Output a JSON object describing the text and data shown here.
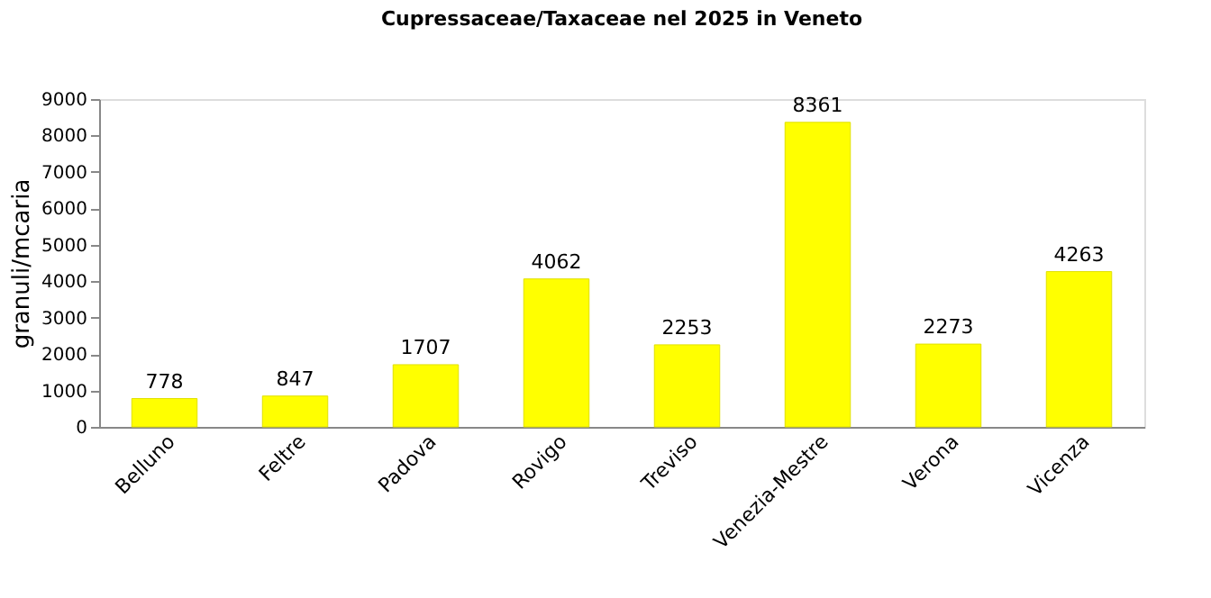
{
  "chart_data": {
    "type": "bar",
    "title": "Cupressaceae/Taxaceae  nel 2025 in Veneto",
    "ylabel": "granuli/mcaria",
    "categories": [
      "Belluno",
      "Feltre",
      "Padova",
      "Rovigo",
      "Treviso",
      "Venezia-Mestre",
      "Verona",
      "Vicenza"
    ],
    "values": [
      778,
      847,
      1707,
      4062,
      2253,
      8361,
      2273,
      4263
    ],
    "color": "#ffff00",
    "ylim": [
      0,
      9000
    ],
    "yticks": [
      0,
      1000,
      2000,
      3000,
      4000,
      5000,
      6000,
      7000,
      8000,
      9000
    ],
    "grid": false,
    "data_labels": true
  }
}
